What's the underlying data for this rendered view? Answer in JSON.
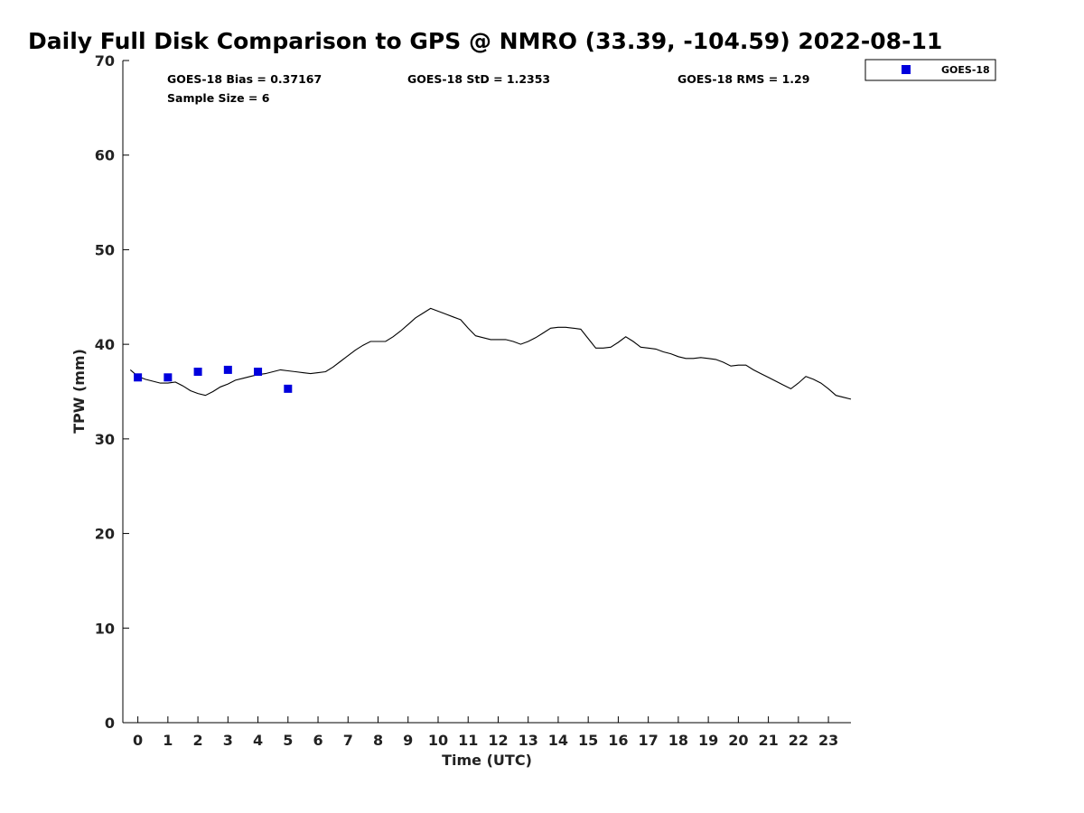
{
  "chart_data": {
    "type": "line",
    "title": "Daily Full Disk Comparison to GPS @ NMRO (33.39, -104.59) 2022-08-11",
    "xlabel": "Time (UTC)",
    "ylabel": "TPW (mm)",
    "xlim": [
      -0.5,
      23.75
    ],
    "ylim": [
      0,
      70
    ],
    "xticks": [
      0,
      1,
      2,
      3,
      4,
      5,
      6,
      7,
      8,
      9,
      10,
      11,
      12,
      13,
      14,
      15,
      16,
      17,
      18,
      19,
      20,
      21,
      22,
      23
    ],
    "xtick_labels": [
      "0",
      "1",
      "2",
      "3",
      "4",
      "5",
      "6",
      "7",
      "8",
      "9",
      "10",
      "11",
      "12",
      "13",
      "14",
      "15",
      "16",
      "17",
      "18",
      "19",
      "20",
      "21",
      "22",
      "23"
    ],
    "yticks": [
      0,
      10,
      20,
      30,
      40,
      50,
      60,
      70
    ],
    "ytick_labels": [
      "0",
      "10",
      "20",
      "30",
      "40",
      "50",
      "60",
      "70"
    ],
    "grid": false,
    "legend_position": "top-right",
    "series": [
      {
        "kind": "line",
        "color": "#000000",
        "x": [
          -0.25,
          0,
          0.25,
          0.5,
          0.75,
          1,
          1.25,
          1.5,
          1.75,
          2,
          2.25,
          2.5,
          2.75,
          3,
          3.25,
          3.5,
          3.75,
          4,
          4.25,
          4.5,
          4.75,
          5,
          5.25,
          5.5,
          5.75,
          6,
          6.25,
          6.5,
          6.75,
          7,
          7.25,
          7.5,
          7.75,
          8,
          8.25,
          8.5,
          8.75,
          9,
          9.25,
          9.5,
          9.75,
          10,
          10.25,
          10.5,
          10.75,
          11,
          11.25,
          11.5,
          11.75,
          12,
          12.25,
          12.5,
          12.75,
          13,
          13.25,
          13.5,
          13.75,
          14,
          14.25,
          14.5,
          14.75,
          15,
          15.25,
          15.5,
          15.75,
          16,
          16.25,
          16.5,
          16.75,
          17,
          17.25,
          17.5,
          17.75,
          18,
          18.25,
          18.5,
          18.75,
          19,
          19.25,
          19.5,
          19.75,
          20,
          20.25,
          20.5,
          20.75,
          21,
          21.25,
          21.5,
          21.75,
          22,
          22.25,
          22.5,
          22.75,
          23,
          23.25,
          23.5,
          23.75
        ],
        "y": [
          37.3,
          36.6,
          36.3,
          36.1,
          35.9,
          35.9,
          36.0,
          35.6,
          35.1,
          34.8,
          34.6,
          35.0,
          35.5,
          35.8,
          36.2,
          36.4,
          36.6,
          36.8,
          36.9,
          37.1,
          37.3,
          37.2,
          37.1,
          37.0,
          36.9,
          37.0,
          37.1,
          37.6,
          38.2,
          38.8,
          39.4,
          39.9,
          40.3,
          40.3,
          40.3,
          40.8,
          41.4,
          42.1,
          42.8,
          43.3,
          43.8,
          43.5,
          43.2,
          42.9,
          42.6,
          41.7,
          40.9,
          40.7,
          40.5,
          40.5,
          40.5,
          40.3,
          40.0,
          40.3,
          40.7,
          41.2,
          41.7,
          41.8,
          41.8,
          41.7,
          41.6,
          40.6,
          39.6,
          39.6,
          39.7,
          40.2,
          40.8,
          40.3,
          39.7,
          39.6,
          39.5,
          39.2,
          39.0,
          38.7,
          38.5,
          38.5,
          38.6,
          38.5,
          38.4,
          38.1,
          37.7,
          37.8,
          37.8,
          37.3,
          36.9,
          36.5,
          36.1,
          35.7,
          35.3,
          35.9,
          36.6,
          36.3,
          35.9,
          35.3,
          34.6,
          34.4,
          34.2
        ]
      },
      {
        "kind": "scatter",
        "name": "GOES-18",
        "color": "#0000dd",
        "x": [
          0,
          1,
          2,
          3,
          4,
          5
        ],
        "y": [
          36.5,
          36.5,
          37.1,
          37.3,
          37.1,
          35.3
        ]
      }
    ],
    "annotations": {
      "bias": "GOES-18 Bias = 0.37167",
      "std": "GOES-18 StD = 1.2353",
      "rms": "GOES-18 RMS = 1.29",
      "sample": "Sample Size = 6"
    },
    "legend": {
      "label": "GOES-18",
      "marker_color": "#0000dd"
    }
  }
}
